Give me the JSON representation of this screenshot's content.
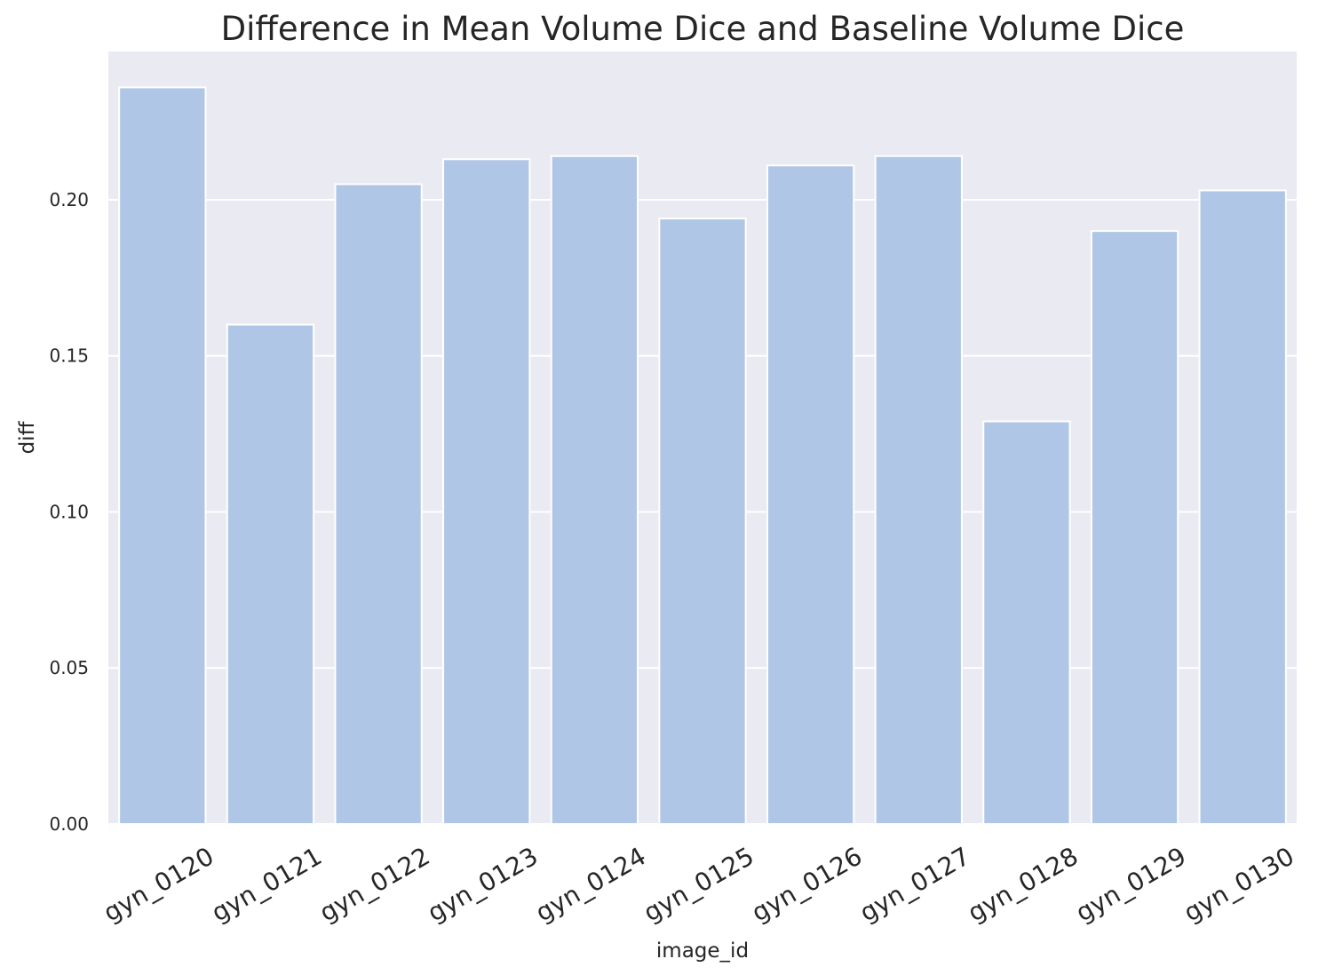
{
  "chart_data": {
    "type": "bar",
    "title": "Difference in Mean Volume Dice and Baseline Volume Dice",
    "xlabel": "image_id",
    "ylabel": "diff",
    "categories": [
      "gyn_0120",
      "gyn_0121",
      "gyn_0122",
      "gyn_0123",
      "gyn_0124",
      "gyn_0125",
      "gyn_0126",
      "gyn_0127",
      "gyn_0128",
      "gyn_0129",
      "gyn_0130"
    ],
    "values": [
      0.236,
      0.16,
      0.205,
      0.213,
      0.214,
      0.194,
      0.211,
      0.214,
      0.129,
      0.19,
      0.203
    ],
    "yticks": [
      "0.00",
      "0.05",
      "0.10",
      "0.15",
      "0.20"
    ],
    "ylim": [
      0,
      0.2475
    ],
    "grid": true,
    "legend": "none",
    "colors": {
      "bar": "#b0c6e7",
      "plot_background": "#eaeaf2",
      "grid": "#ffffff",
      "text": "#262626"
    }
  }
}
